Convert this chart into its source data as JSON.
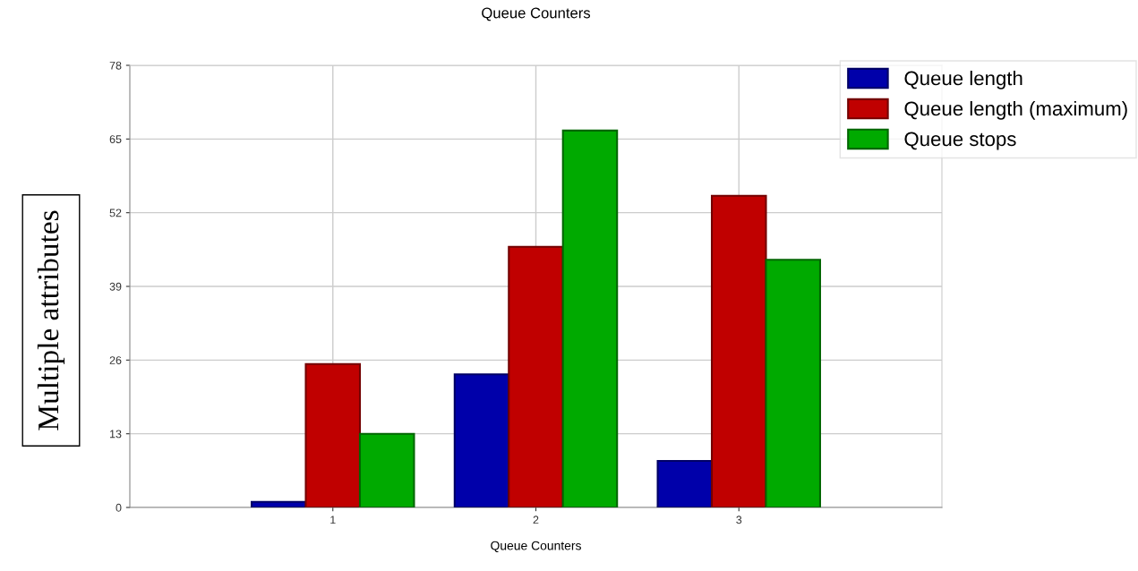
{
  "chart_data": {
    "type": "bar",
    "title": "Queue Counters",
    "xlabel": "Queue Counters",
    "ylabel": "Multiple attributes",
    "categories": [
      "1",
      "2",
      "3"
    ],
    "series": [
      {
        "name": "Queue length",
        "color": "#0000aa",
        "values": [
          1,
          23.5,
          8.2
        ]
      },
      {
        "name": "Queue length (maximum)",
        "color": "#c00000",
        "values": [
          25.3,
          46,
          55
        ]
      },
      {
        "name": "Queue stops",
        "color": "#00aa00",
        "values": [
          13,
          66.5,
          43.7
        ]
      }
    ],
    "ylim": [
      0,
      78
    ],
    "yticks": [
      0,
      13,
      26,
      39,
      52,
      65,
      78
    ],
    "grid": true,
    "legend": "top right"
  }
}
